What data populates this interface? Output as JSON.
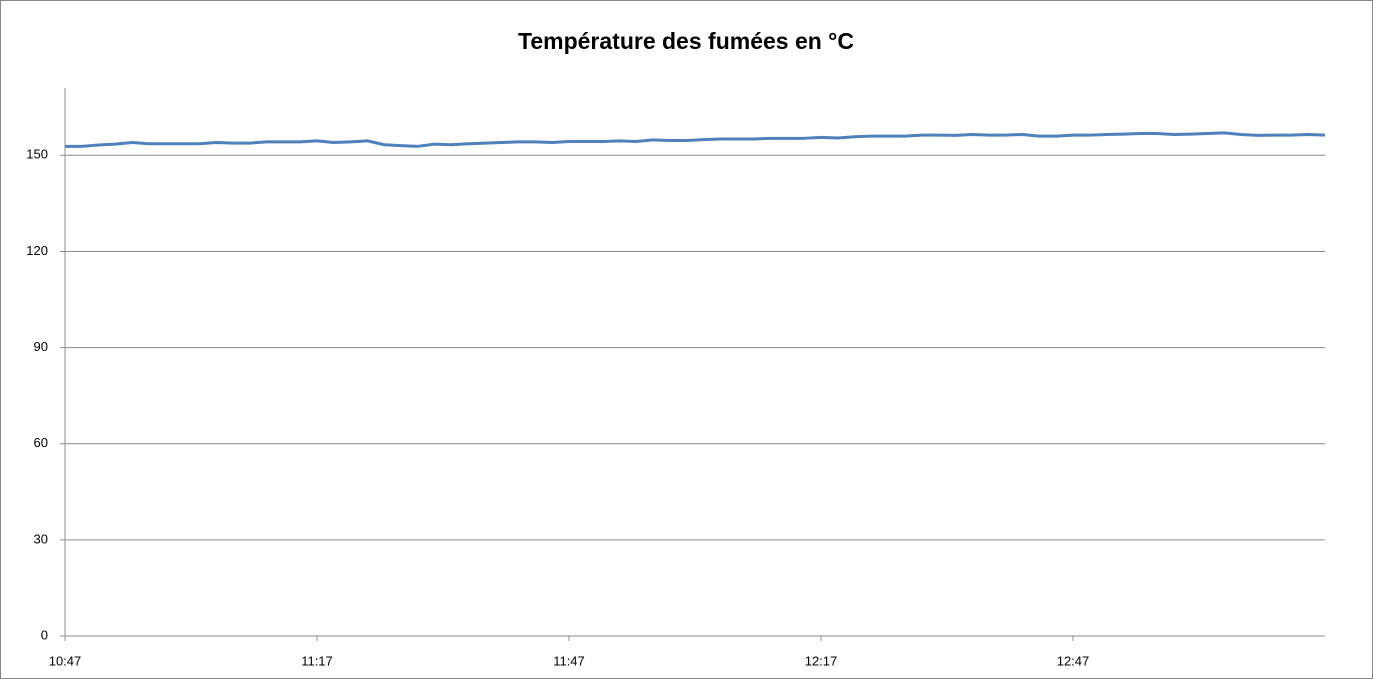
{
  "chart_data": {
    "type": "line",
    "title": "Température des fumées en °C",
    "x": [
      "10:47",
      "10:49",
      "10:51",
      "10:53",
      "10:55",
      "10:57",
      "10:59",
      "11:01",
      "11:03",
      "11:05",
      "11:07",
      "11:09",
      "11:11",
      "11:13",
      "11:15",
      "11:17",
      "11:19",
      "11:21",
      "11:23",
      "11:25",
      "11:27",
      "11:29",
      "11:31",
      "11:33",
      "11:35",
      "11:37",
      "11:39",
      "11:41",
      "11:43",
      "11:45",
      "11:47",
      "11:49",
      "11:51",
      "11:53",
      "11:55",
      "11:57",
      "11:59",
      "12:01",
      "12:03",
      "12:05",
      "12:07",
      "12:09",
      "12:11",
      "12:13",
      "12:15",
      "12:17",
      "12:19",
      "12:21",
      "12:23",
      "12:25",
      "12:27",
      "12:29",
      "12:31",
      "12:33",
      "12:35",
      "12:37",
      "12:39",
      "12:41",
      "12:43",
      "12:45",
      "12:47",
      "12:49",
      "12:51",
      "12:53",
      "12:55",
      "12:57",
      "12:59",
      "13:01",
      "13:03",
      "13:05",
      "13:07",
      "13:09",
      "13:11",
      "13:13",
      "13:15",
      "13:17"
    ],
    "series": [
      {
        "name": "Température des fumées",
        "color": "#4f81bd",
        "values": [
          152.8,
          152.8,
          153.2,
          153.5,
          154.0,
          153.6,
          153.6,
          153.6,
          153.6,
          154.0,
          153.8,
          153.8,
          154.2,
          154.2,
          154.2,
          154.5,
          154.0,
          154.2,
          154.5,
          153.3,
          153.0,
          152.8,
          153.5,
          153.3,
          153.6,
          153.8,
          154.0,
          154.2,
          154.2,
          154.0,
          154.3,
          154.3,
          154.3,
          154.5,
          154.3,
          154.8,
          154.6,
          154.6,
          154.9,
          155.1,
          155.1,
          155.1,
          155.3,
          155.3,
          155.3,
          155.6,
          155.4,
          155.8,
          156.0,
          156.0,
          156.0,
          156.3,
          156.3,
          156.2,
          156.5,
          156.3,
          156.3,
          156.5,
          156.0,
          156.0,
          156.3,
          156.3,
          156.5,
          156.6,
          156.8,
          156.8,
          156.5,
          156.6,
          156.8,
          157.0,
          156.5,
          156.2,
          156.3,
          156.3,
          156.5,
          156.3
        ]
      }
    ],
    "xlim": [
      "10:47",
      "13:17"
    ],
    "xticks": [
      "10:47",
      "11:17",
      "11:47",
      "12:17",
      "12:47"
    ],
    "ylim": [
      0,
      171
    ],
    "yticks": [
      0,
      30,
      60,
      90,
      120,
      150
    ],
    "grid": true
  }
}
